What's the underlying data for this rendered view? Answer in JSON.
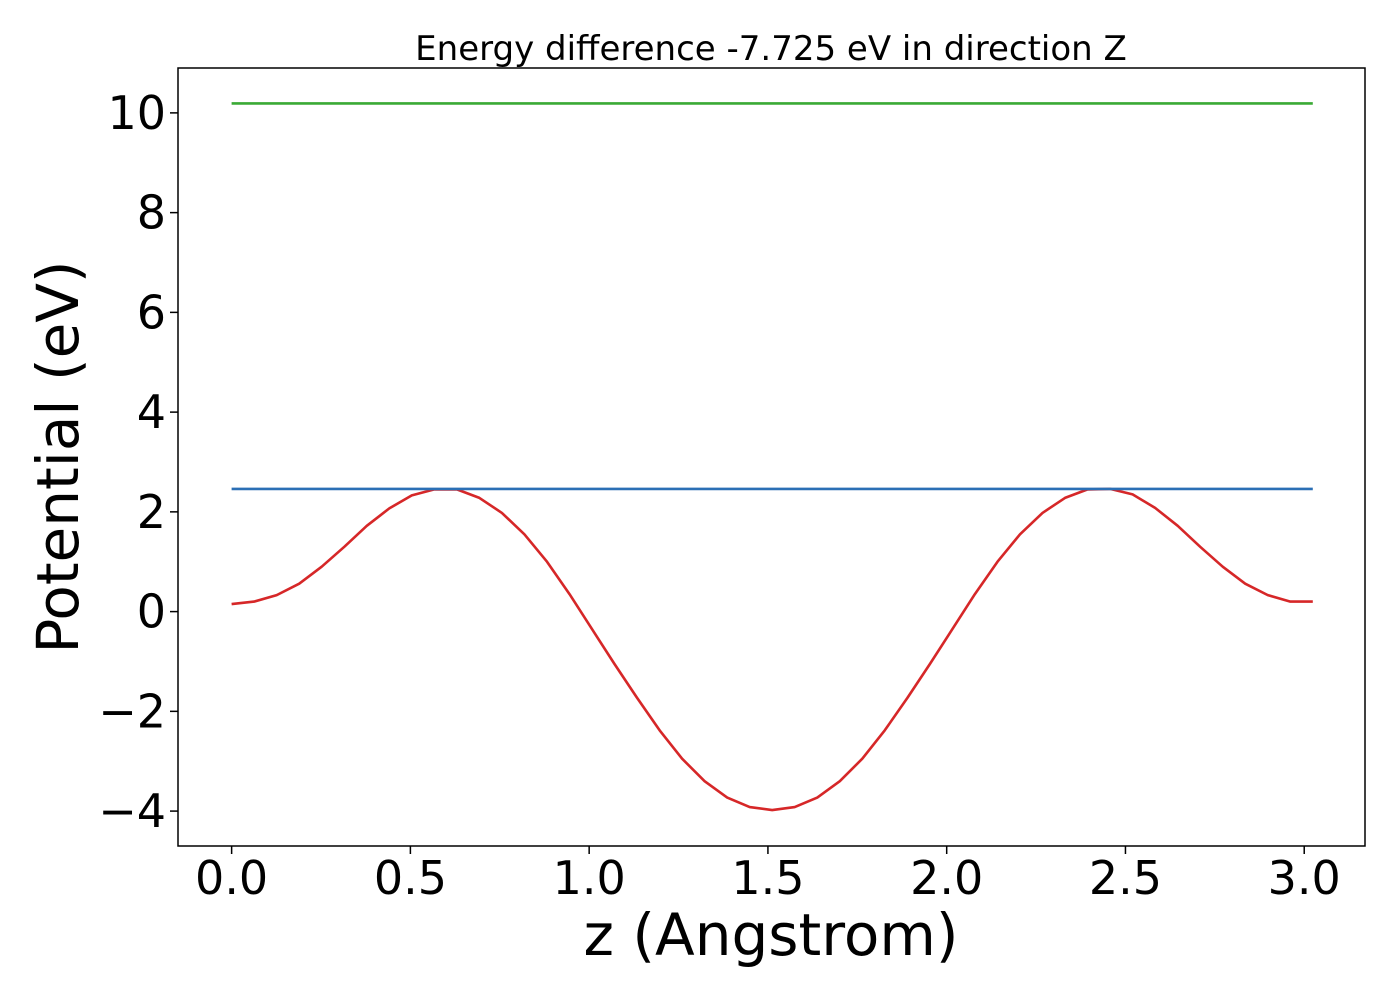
{
  "chart_data": {
    "type": "line",
    "title": "Energy difference -7.725 eV in direction Z",
    "xlabel": "z (Angstrom)",
    "ylabel": "Potential (eV)",
    "xlim": [
      -0.15,
      3.17
    ],
    "ylim": [
      -4.7,
      10.9
    ],
    "xticks": [
      0.0,
      0.5,
      1.0,
      1.5,
      2.0,
      2.5,
      3.0
    ],
    "xtick_labels": [
      "0.0",
      "0.5",
      "1.0",
      "1.5",
      "2.0",
      "2.5",
      "3.0"
    ],
    "yticks": [
      -4,
      -2,
      0,
      2,
      4,
      6,
      8,
      10
    ],
    "ytick_labels": [
      "−4",
      "−2",
      "0",
      "2",
      "4",
      "6",
      "8",
      "10"
    ],
    "grid": false,
    "legend": "none",
    "series": [
      {
        "color": "#d62728",
        "x": [
          0.0,
          0.063,
          0.126,
          0.189,
          0.252,
          0.315,
          0.378,
          0.441,
          0.504,
          0.567,
          0.63,
          0.693,
          0.756,
          0.819,
          0.882,
          0.945,
          1.008,
          1.071,
          1.134,
          1.197,
          1.26,
          1.323,
          1.386,
          1.449,
          1.512,
          1.575,
          1.638,
          1.701,
          1.764,
          1.827,
          1.89,
          1.953,
          2.016,
          2.079,
          2.142,
          2.205,
          2.268,
          2.331,
          2.394,
          2.457,
          2.52,
          2.583,
          2.646,
          2.709,
          2.772,
          2.835,
          2.898,
          2.961,
          3.024
        ],
        "y": [
          0.15,
          0.2,
          0.33,
          0.56,
          0.9,
          1.3,
          1.72,
          2.07,
          2.33,
          2.45,
          2.45,
          2.28,
          1.98,
          1.55,
          1.0,
          0.35,
          -0.35,
          -1.05,
          -1.73,
          -2.38,
          -2.95,
          -3.4,
          -3.73,
          -3.92,
          -3.98,
          -3.92,
          -3.73,
          -3.4,
          -2.95,
          -2.38,
          -1.73,
          -1.05,
          -0.35,
          0.35,
          1.0,
          1.55,
          1.98,
          2.28,
          2.45,
          2.46,
          2.35,
          2.08,
          1.72,
          1.3,
          0.9,
          0.56,
          0.33,
          0.2,
          0.2
        ]
      },
      {
        "color": "#2b6fb5",
        "x": [
          0.0,
          3.024
        ],
        "y": [
          2.46,
          2.46
        ]
      },
      {
        "color": "#3aaa35",
        "x": [
          0.0,
          3.024
        ],
        "y": [
          10.19,
          10.19
        ]
      }
    ]
  }
}
